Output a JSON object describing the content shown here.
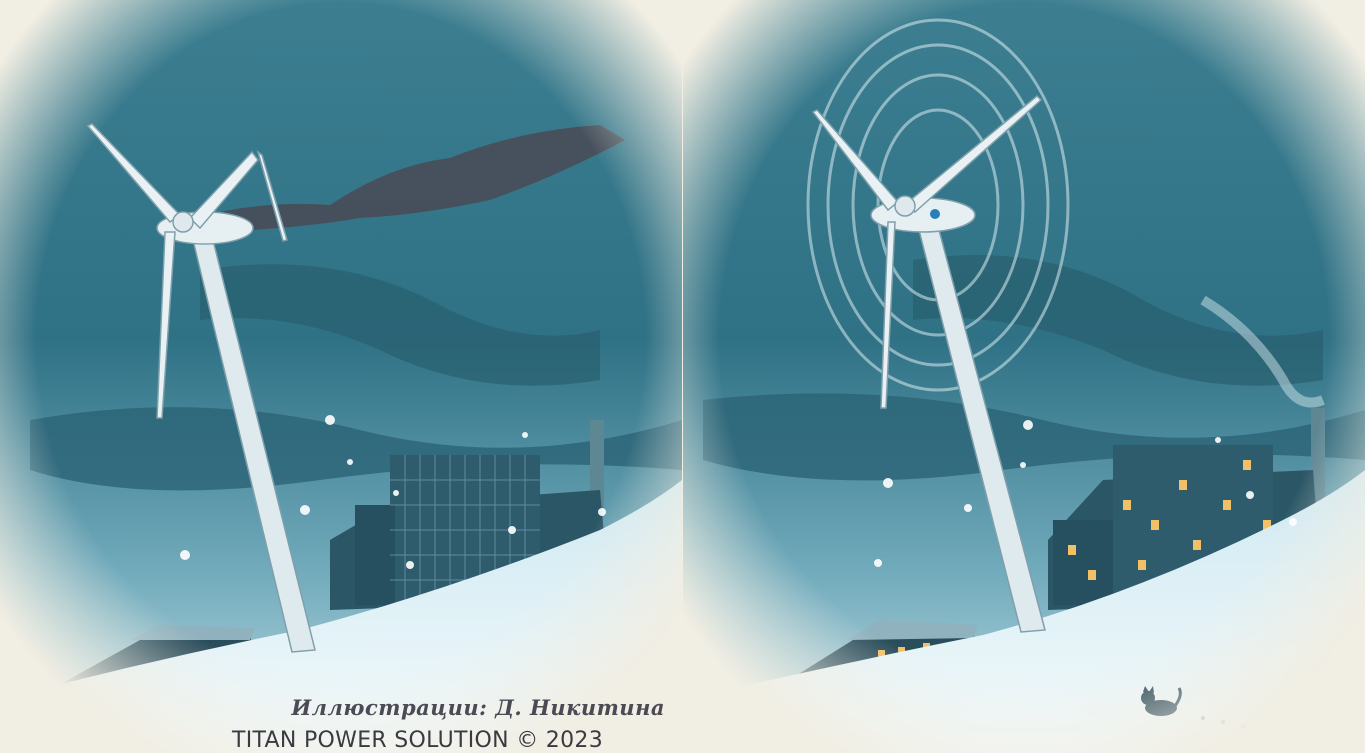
{
  "illustration": {
    "left_scene": "broken-wind-turbine-scene",
    "right_scene": "working-wind-turbine-scene",
    "credit_text": "Иллюстрации: Д. Никитина",
    "brand_text": "TITAN POWER SOLUTION © 2023"
  },
  "colors": {
    "sky_dark": "#2f6f82",
    "sky_light": "#9cc6d3",
    "snow": "#dceff5",
    "frame": "#f1eee3",
    "smoke": "#4a4a55",
    "window_glow": "#f2c066"
  }
}
